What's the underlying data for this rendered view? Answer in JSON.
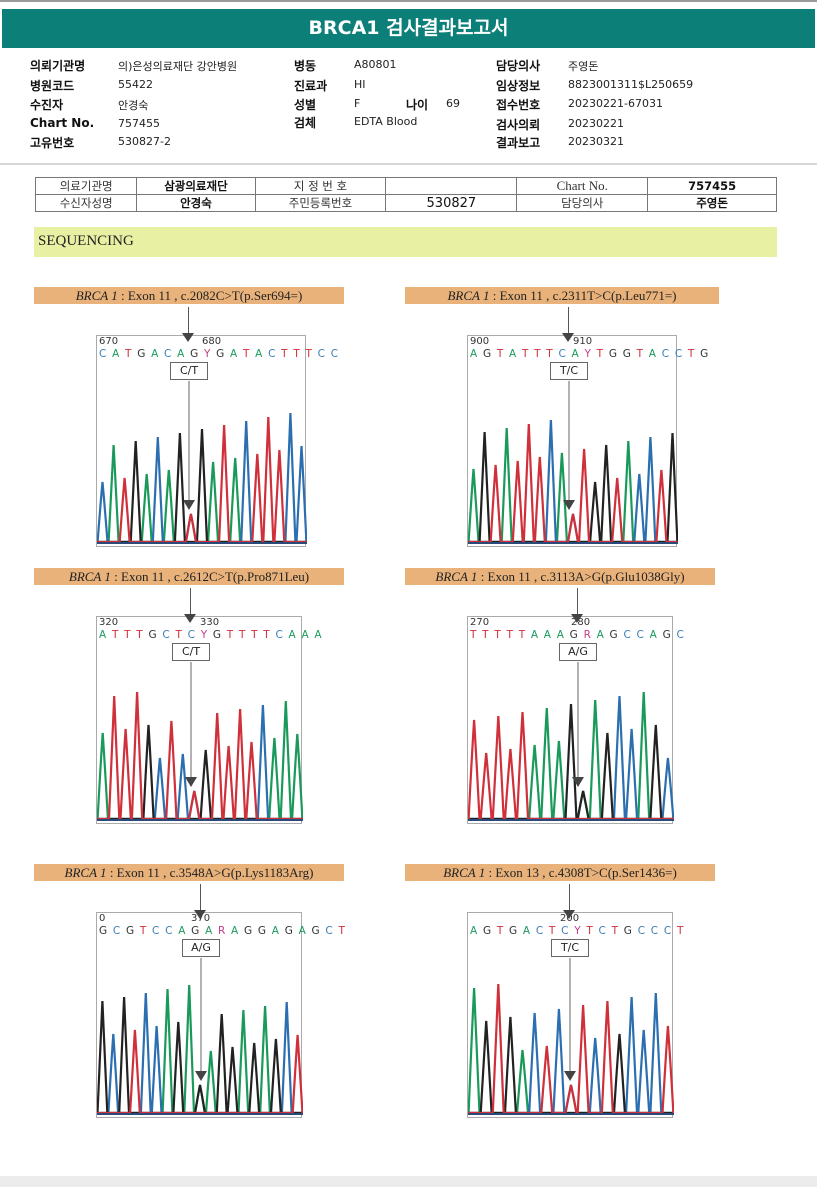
{
  "header": {
    "title": "BRCA1 검사결과보고서"
  },
  "info": {
    "col1": [
      {
        "label": "의뢰기관명",
        "value": "의)은성의료재단 강안병원"
      },
      {
        "label": "병원코드",
        "value": "55422"
      },
      {
        "label": "수진자",
        "value": "안경숙"
      },
      {
        "label": "Chart No.",
        "value": "757455"
      },
      {
        "label": "고유번호",
        "value": "530827-2"
      }
    ],
    "col2": [
      {
        "label": "병동",
        "value": "A80801"
      },
      {
        "label": "진료과",
        "value": "HI"
      },
      {
        "label": "성별",
        "value": "F"
      },
      {
        "label": "검체",
        "value": "EDTA Blood"
      }
    ],
    "age": {
      "label": "나이",
      "value": "69"
    },
    "col3": [
      {
        "label": "담당의사",
        "value": "주영돈"
      },
      {
        "label": "임상정보",
        "value": "8823001311$L250659"
      },
      {
        "label": "접수번호",
        "value": "20230221-67031"
      },
      {
        "label": "검사의뢰",
        "value": "20230221"
      },
      {
        "label": "결과보고",
        "value": "20230321"
      }
    ]
  },
  "report_table": {
    "row1": [
      "의료기관명",
      "삼광의료재단",
      "지 정 번 호",
      "",
      "Chart No.",
      "757455"
    ],
    "row2": [
      "수신자성명",
      "안경숙",
      "주민등록번호",
      "530827",
      "담당의사",
      "주영돈"
    ]
  },
  "section": {
    "title": "SEQUENCING"
  },
  "panels": [
    {
      "gene": "BRCA 1",
      "desc": ": Exon 11 , c.2082C>T(p.Ser694=)",
      "pos1": "670",
      "pos2": "680",
      "bases": "CATGACAGYGATACTTTCC",
      "call": "C/T"
    },
    {
      "gene": "BRCA 1",
      "desc": ": Exon 11 , c.2311T>C(p.Leu771=)",
      "pos1": "900",
      "pos2": "910",
      "bases": "AGTATTTCAYTGGTACCTG",
      "call": "T/C"
    },
    {
      "gene": "BRCA 1",
      "desc": ": Exon 11 , c.2612C>T(p.Pro871Leu)",
      "pos1": "320",
      "pos2": "330",
      "bases": "ATTTGCTCYGTTTTCAAA",
      "call": "C/T"
    },
    {
      "gene": "BRCA 1",
      "desc": ": Exon 11 , c.3113A>G(p.Glu1038Gly)",
      "pos1": "270",
      "pos2": "280",
      "bases": "TTTTTAAAGRAGCCAGC",
      "call": "A/G"
    },
    {
      "gene": "BRCA 1",
      "desc": ": Exon 11 , c.3548A>G(p.Lys1183Arg)",
      "pos1": "0",
      "pos2": "370",
      "bases": "GCGTCCAGARAGGAGAGCT",
      "call": "A/G"
    },
    {
      "gene": "BRCA 1",
      "desc": ": Exon 13 , c.4308T>C(p.Ser1436=)",
      "pos1": "",
      "pos2": "200",
      "bases": "AGTGACTCYTCTGCCCT",
      "call": "T/C"
    }
  ],
  "colors": {
    "A": "#1a9a5a",
    "C": "#2c6fb0",
    "G": "#222222",
    "T": "#d0303a",
    "header": "#0b7f78"
  }
}
